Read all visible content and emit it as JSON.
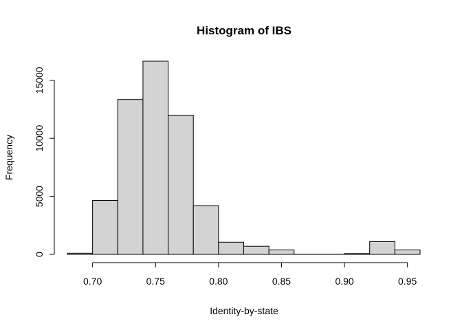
{
  "chart_data": {
    "type": "bar",
    "title": "Histogram of IBS",
    "xlabel": "Identity-by-state",
    "ylabel": "Frequency",
    "bin_edges": [
      0.68,
      0.7,
      0.72,
      0.74,
      0.76,
      0.78,
      0.8,
      0.82,
      0.84,
      0.86,
      0.88,
      0.9,
      0.92,
      0.94,
      0.96
    ],
    "values": [
      100,
      4650,
      13350,
      16650,
      12000,
      4200,
      1050,
      700,
      380,
      10,
      10,
      70,
      1100,
      380
    ],
    "xlim": [
      0.68,
      0.96
    ],
    "ylim": [
      0,
      16650
    ],
    "x_ticks": [
      0.7,
      0.75,
      0.8,
      0.85,
      0.9,
      0.95
    ],
    "x_tick_labels": [
      "0.70",
      "0.75",
      "0.80",
      "0.85",
      "0.90",
      "0.95"
    ],
    "y_ticks": [
      0,
      5000,
      10000,
      15000
    ],
    "y_tick_labels": [
      "0",
      "5000",
      "10000",
      "15000"
    ],
    "grid": false,
    "colors": {
      "bar_fill": "#d3d3d3",
      "bar_stroke": "#000000"
    }
  }
}
